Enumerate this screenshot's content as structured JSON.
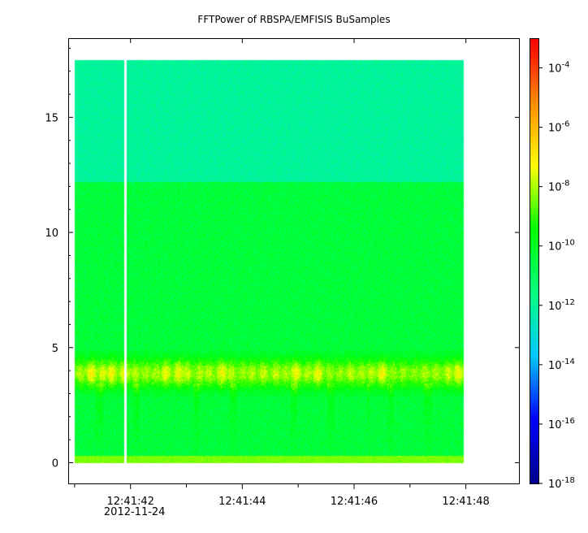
{
  "chart_data": {
    "type": "heatmap",
    "title": "FFTPower of RBSPA/EMFISIS  BuSamples",
    "xlabel": "",
    "ylabel": "",
    "x_tick_labels": [
      "12:41:42",
      "12:41:44",
      "12:41:46",
      "12:41:48"
    ],
    "x_tick_seconds": [
      42,
      44,
      46,
      48
    ],
    "x_date_label": "2012-11-24",
    "xlim_seconds": [
      40.9,
      48.95
    ],
    "y_ticks": [
      0,
      5,
      10,
      15
    ],
    "ylim": [
      -0.9,
      18.4
    ],
    "data_y_range": [
      0,
      17.5
    ],
    "data_x_range_seconds": [
      41.0,
      47.95
    ],
    "data_gap_seconds": 41.9,
    "noise_band_break_y": 12.2,
    "band_center_y": 3.9,
    "colorbar": {
      "scale": "log",
      "range": [
        1e-18,
        0.001
      ],
      "tick_exponents": [
        -4,
        -6,
        -8,
        -10,
        -12,
        -14,
        -16,
        -18
      ],
      "tick_base": "10",
      "colormap": [
        "#00008b",
        "#0000ff",
        "#00c8ff",
        "#00ff80",
        "#00ff00",
        "#ffff00",
        "#ff8c00",
        "#ff0000"
      ]
    },
    "regions": [
      {
        "y_from": 12.2,
        "y_to": 17.5,
        "level_exp": -12.0
      },
      {
        "y_from": 0.2,
        "y_to": 12.2,
        "level_exp": -10.3
      },
      {
        "y_from": 3.5,
        "y_to": 4.3,
        "level_exp": -8.0
      },
      {
        "y_from": 0.0,
        "y_to": 0.2,
        "level_exp": -8.5
      }
    ]
  }
}
